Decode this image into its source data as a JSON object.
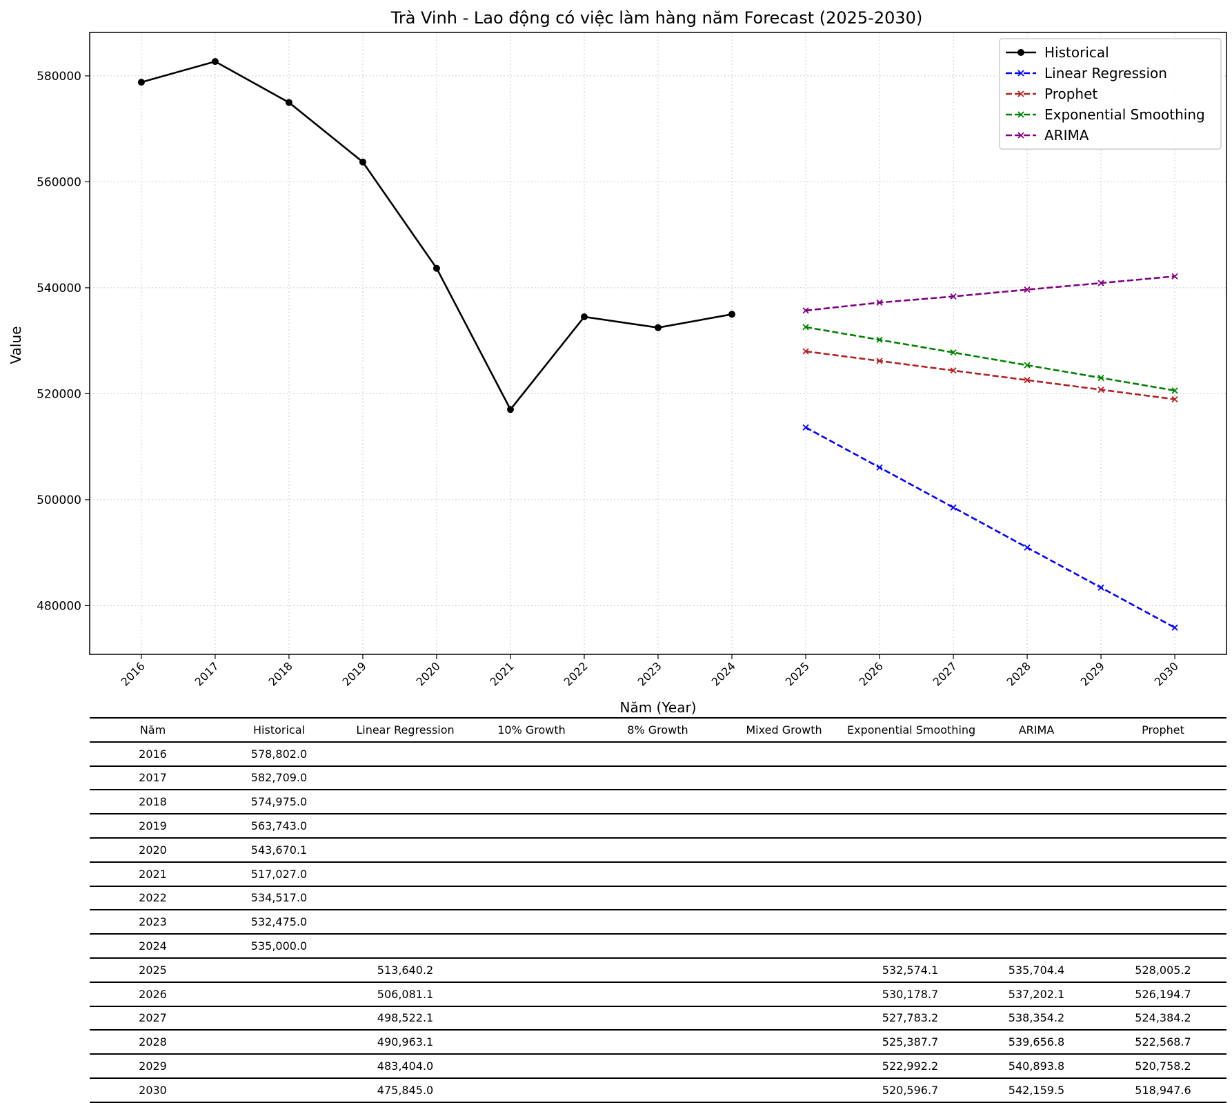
{
  "chart_data": {
    "type": "line",
    "title": "Trà Vinh - Lao động có việc làm hàng năm Forecast (2025-2030)",
    "xlabel": "Năm (Year)",
    "ylabel": "Value",
    "x_ticks": [
      "2016",
      "2017",
      "2018",
      "2019",
      "2020",
      "2021",
      "2022",
      "2023",
      "2024",
      "2025",
      "2026",
      "2027",
      "2028",
      "2029",
      "2030"
    ],
    "y_ticks": [
      480000,
      500000,
      520000,
      540000,
      560000,
      580000
    ],
    "ylim": [
      470800,
      588200
    ],
    "xlim": [
      2015.3,
      2030.7
    ],
    "grid": true,
    "legend_position": "top-right",
    "series": [
      {
        "name": "Historical",
        "color": "#000000",
        "style": "solid",
        "marker": "circle",
        "x": [
          2016,
          2017,
          2018,
          2019,
          2020,
          2021,
          2022,
          2023,
          2024
        ],
        "values": [
          578802.0,
          582709.0,
          574975.0,
          563743.0,
          543670.1,
          517027.0,
          534517.0,
          532475.0,
          535000.0
        ]
      },
      {
        "name": "Linear Regression",
        "color": "#0000ff",
        "style": "dashed",
        "marker": "x",
        "x": [
          2025,
          2026,
          2027,
          2028,
          2029,
          2030
        ],
        "values": [
          513640.2,
          506081.1,
          498522.1,
          490963.1,
          483404.0,
          475845.0
        ]
      },
      {
        "name": "Prophet",
        "color": "#b22222",
        "style": "dashed",
        "marker": "x",
        "x": [
          2025,
          2026,
          2027,
          2028,
          2029,
          2030
        ],
        "values": [
          528005.2,
          526194.7,
          524384.2,
          522568.7,
          520758.2,
          518947.6
        ]
      },
      {
        "name": "Exponential Smoothing",
        "color": "#008000",
        "style": "dashed",
        "marker": "x",
        "x": [
          2025,
          2026,
          2027,
          2028,
          2029,
          2030
        ],
        "values": [
          532574.1,
          530178.7,
          527783.2,
          525387.7,
          522992.2,
          520596.7
        ]
      },
      {
        "name": "ARIMA",
        "color": "#800080",
        "style": "dashed",
        "marker": "x",
        "x": [
          2025,
          2026,
          2027,
          2028,
          2029,
          2030
        ],
        "values": [
          535704.4,
          537202.1,
          538354.2,
          539656.8,
          540893.8,
          542159.5
        ]
      }
    ]
  },
  "table": {
    "headers": [
      "Năm",
      "Historical",
      "Linear Regression",
      "10% Growth",
      "8% Growth",
      "Mixed Growth",
      "Exponential Smoothing",
      "ARIMA",
      "Prophet"
    ],
    "rows": [
      [
        "2016",
        "578,802.0",
        "",
        "",
        "",
        "",
        "",
        "",
        ""
      ],
      [
        "2017",
        "582,709.0",
        "",
        "",
        "",
        "",
        "",
        "",
        ""
      ],
      [
        "2018",
        "574,975.0",
        "",
        "",
        "",
        "",
        "",
        "",
        ""
      ],
      [
        "2019",
        "563,743.0",
        "",
        "",
        "",
        "",
        "",
        "",
        ""
      ],
      [
        "2020",
        "543,670.1",
        "",
        "",
        "",
        "",
        "",
        "",
        ""
      ],
      [
        "2021",
        "517,027.0",
        "",
        "",
        "",
        "",
        "",
        "",
        ""
      ],
      [
        "2022",
        "534,517.0",
        "",
        "",
        "",
        "",
        "",
        "",
        ""
      ],
      [
        "2023",
        "532,475.0",
        "",
        "",
        "",
        "",
        "",
        "",
        ""
      ],
      [
        "2024",
        "535,000.0",
        "",
        "",
        "",
        "",
        "",
        "",
        ""
      ],
      [
        "2025",
        "",
        "513,640.2",
        "",
        "",
        "",
        "532,574.1",
        "535,704.4",
        "528,005.2"
      ],
      [
        "2026",
        "",
        "506,081.1",
        "",
        "",
        "",
        "530,178.7",
        "537,202.1",
        "526,194.7"
      ],
      [
        "2027",
        "",
        "498,522.1",
        "",
        "",
        "",
        "527,783.2",
        "538,354.2",
        "524,384.2"
      ],
      [
        "2028",
        "",
        "490,963.1",
        "",
        "",
        "",
        "525,387.7",
        "539,656.8",
        "522,568.7"
      ],
      [
        "2029",
        "",
        "483,404.0",
        "",
        "",
        "",
        "522,992.2",
        "540,893.8",
        "520,758.2"
      ],
      [
        "2030",
        "",
        "475,845.0",
        "",
        "",
        "",
        "520,596.7",
        "542,159.5",
        "518,947.6"
      ]
    ]
  }
}
